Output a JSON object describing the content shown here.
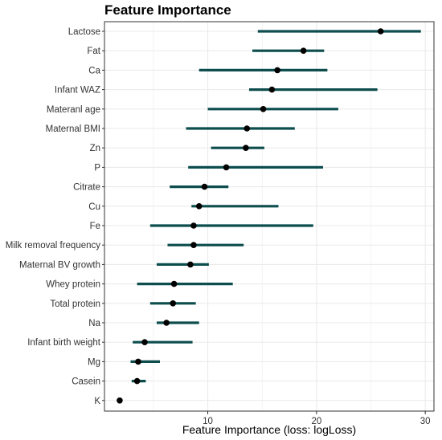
{
  "chart_data": {
    "type": "errorbar",
    "title": "Feature Importance",
    "xlabel": "Feature Importance (loss: logLoss)",
    "ylabel": "",
    "xlim": [
      0.5,
      30.8
    ],
    "xticks": [
      10,
      20,
      30
    ],
    "grid": true,
    "colors": {
      "interval": "#0d4d4d",
      "point": "#000000",
      "grid": "#ebebeb",
      "border": "#333333"
    },
    "features": [
      {
        "label": "Lactose",
        "value": 25.9,
        "low": 14.6,
        "high": 29.6
      },
      {
        "label": "Fat",
        "value": 18.8,
        "low": 14.1,
        "high": 20.7
      },
      {
        "label": "Ca",
        "value": 16.4,
        "low": 9.2,
        "high": 21.0
      },
      {
        "label": "Infant WAZ",
        "value": 15.9,
        "low": 13.8,
        "high": 25.6
      },
      {
        "label": "Materanl age",
        "value": 15.1,
        "low": 10.0,
        "high": 22.0
      },
      {
        "label": "Maternal BMI",
        "value": 13.6,
        "low": 8.0,
        "high": 18.0
      },
      {
        "label": "Zn",
        "value": 13.5,
        "low": 10.3,
        "high": 15.2
      },
      {
        "label": "P",
        "value": 11.7,
        "low": 8.2,
        "high": 20.6
      },
      {
        "label": "Citrate",
        "value": 9.7,
        "low": 6.5,
        "high": 11.9
      },
      {
        "label": "Cu",
        "value": 9.2,
        "low": 8.5,
        "high": 16.5
      },
      {
        "label": "Fe",
        "value": 8.7,
        "low": 4.7,
        "high": 19.7
      },
      {
        "label": "Milk removal frequency",
        "value": 8.7,
        "low": 6.3,
        "high": 13.3
      },
      {
        "label": "Maternal BV growth",
        "value": 8.4,
        "low": 5.3,
        "high": 10.1
      },
      {
        "label": "Whey protein",
        "value": 6.9,
        "low": 3.5,
        "high": 12.3
      },
      {
        "label": "Total protein",
        "value": 6.8,
        "low": 4.7,
        "high": 8.9
      },
      {
        "label": "Na",
        "value": 6.2,
        "low": 5.3,
        "high": 9.2
      },
      {
        "label": "Infant birth weight",
        "value": 4.2,
        "low": 3.1,
        "high": 8.6
      },
      {
        "label": "Mg",
        "value": 3.6,
        "low": 2.9,
        "high": 5.6
      },
      {
        "label": "Casein",
        "value": 3.5,
        "low": 3.0,
        "high": 4.3
      },
      {
        "label": "K",
        "value": 1.9,
        "low": 1.9,
        "high": 1.9
      }
    ]
  }
}
